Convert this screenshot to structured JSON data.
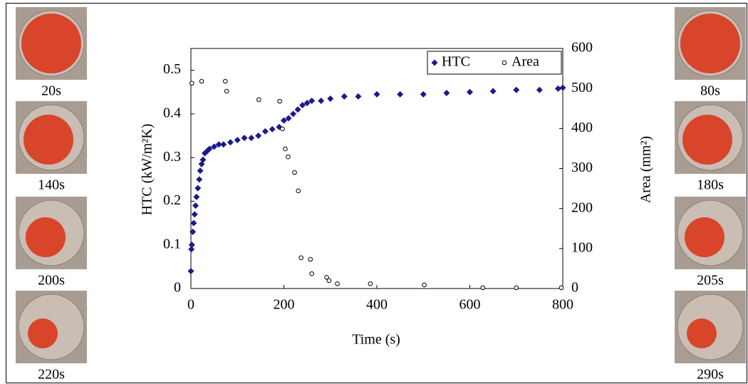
{
  "chart_data": {
    "type": "scatter",
    "x_label": "Time (s)",
    "y_label": "HTC (kW/m²K)",
    "y2_label": "Area (mm²)",
    "xlim": [
      0,
      800
    ],
    "xticks": [
      0,
      200,
      400,
      600,
      800
    ],
    "ylim": [
      0,
      0.55
    ],
    "yticks": [
      0,
      0.1,
      0.2,
      0.3,
      0.4,
      0.5
    ],
    "y2lim": [
      0,
      600
    ],
    "y2ticks": [
      0,
      100,
      200,
      300,
      400,
      500,
      600
    ],
    "legend": "upper right",
    "series": [
      {
        "name": "HTC",
        "color": "#1a1a8c",
        "marker": "diamond",
        "x": [
          0,
          1,
          2,
          4,
          6,
          8,
          10,
          12,
          15,
          18,
          20,
          23,
          26,
          30,
          35,
          40,
          50,
          60,
          70,
          85,
          100,
          115,
          130,
          145,
          160,
          175,
          190,
          200,
          210,
          220,
          230,
          240,
          250,
          260,
          280,
          300,
          330,
          360,
          400,
          450,
          500,
          550,
          600,
          650,
          700,
          750,
          790,
          800
        ],
        "values": [
          0.04,
          0.09,
          0.1,
          0.13,
          0.15,
          0.17,
          0.19,
          0.21,
          0.23,
          0.25,
          0.27,
          0.285,
          0.295,
          0.31,
          0.315,
          0.32,
          0.325,
          0.33,
          0.33,
          0.335,
          0.34,
          0.345,
          0.345,
          0.35,
          0.36,
          0.365,
          0.37,
          0.385,
          0.39,
          0.4,
          0.41,
          0.42,
          0.425,
          0.43,
          0.43,
          0.435,
          0.44,
          0.44,
          0.445,
          0.445,
          0.445,
          0.448,
          0.45,
          0.452,
          0.455,
          0.455,
          0.458,
          0.46
        ]
      },
      {
        "name": "Area",
        "color": "#000000",
        "marker": "open-circle",
        "axis": "y2",
        "x": [
          2,
          23,
          74,
          77,
          146,
          191,
          197,
          203,
          209,
          223,
          231,
          237,
          257,
          260,
          292,
          297,
          315,
          386,
          502,
          628,
          700,
          797
        ],
        "values": [
          513,
          518,
          518,
          493,
          472,
          468,
          399,
          349,
          329,
          290,
          244,
          77,
          73,
          37,
          28,
          20,
          12,
          12,
          9,
          2,
          2,
          2
        ]
      }
    ]
  },
  "panels": {
    "left": [
      "20s",
      "140s",
      "200s",
      "220s"
    ],
    "right": [
      "80s",
      "180s",
      "205s",
      "290s"
    ]
  }
}
